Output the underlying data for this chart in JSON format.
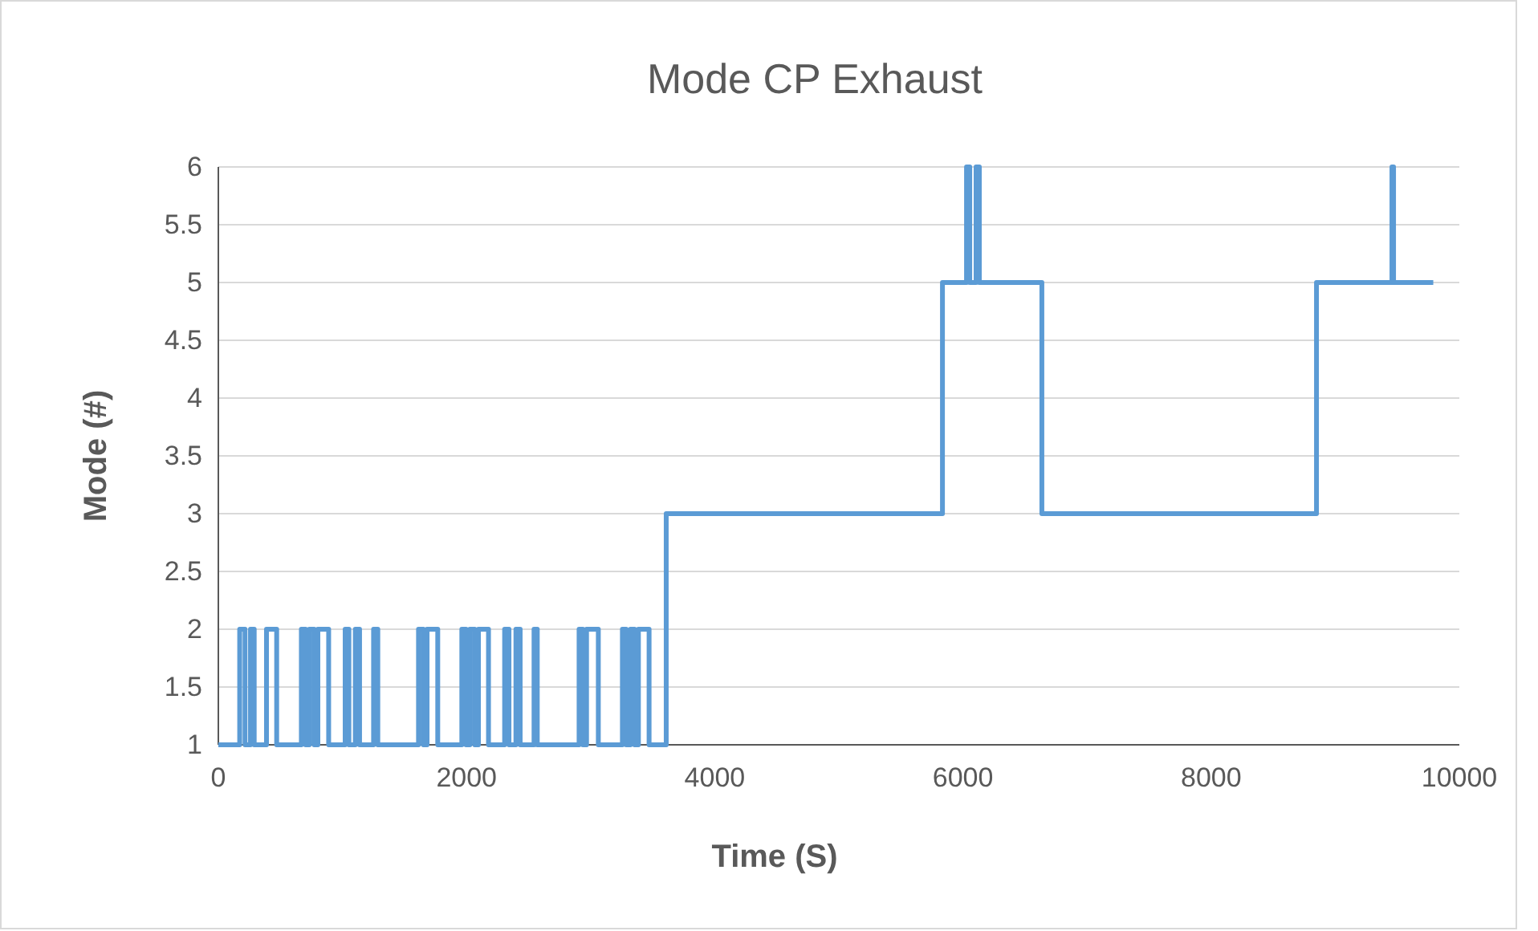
{
  "chart_data": {
    "type": "step",
    "title": "Mode CP Exhaust",
    "xlabel": "Time (S)",
    "ylabel": "Mode (#)",
    "x": [
      0,
      172,
      215,
      259,
      289,
      388,
      470,
      669,
      703,
      733,
      772,
      802,
      889,
      1022,
      1052,
      1104,
      1138,
      1251,
      1285,
      1613,
      1652,
      1682,
      1768,
      1962,
      1996,
      2027,
      2066,
      2096,
      2177,
      2307,
      2342,
      2398,
      2432,
      2544,
      2570,
      2907,
      2937,
      2967,
      3062,
      3256,
      3286,
      3321,
      3354,
      3385,
      3471,
      3609,
      5835,
      6029,
      6055,
      6106,
      6132,
      6636,
      8849,
      9457,
      9470,
      9790
    ],
    "values": [
      1,
      2,
      1,
      2,
      1,
      2,
      1,
      2,
      1,
      2,
      1,
      2,
      1,
      2,
      1,
      2,
      1,
      2,
      1,
      2,
      1,
      2,
      1,
      2,
      1,
      2,
      1,
      2,
      1,
      2,
      1,
      2,
      1,
      2,
      1,
      2,
      1,
      2,
      1,
      2,
      1,
      2,
      1,
      2,
      1,
      3,
      5,
      6,
      5,
      6,
      5,
      3,
      5,
      6,
      5,
      5
    ],
    "color": "#5b9bd5",
    "xlim": [
      0,
      10000
    ],
    "xticks": [
      0,
      2000,
      4000,
      6000,
      8000,
      10000
    ],
    "ylim": [
      1,
      6
    ],
    "yticks": [
      1,
      1.5,
      2,
      2.5,
      3,
      3.5,
      4,
      4.5,
      5,
      5.5,
      6
    ],
    "grid": "y"
  }
}
